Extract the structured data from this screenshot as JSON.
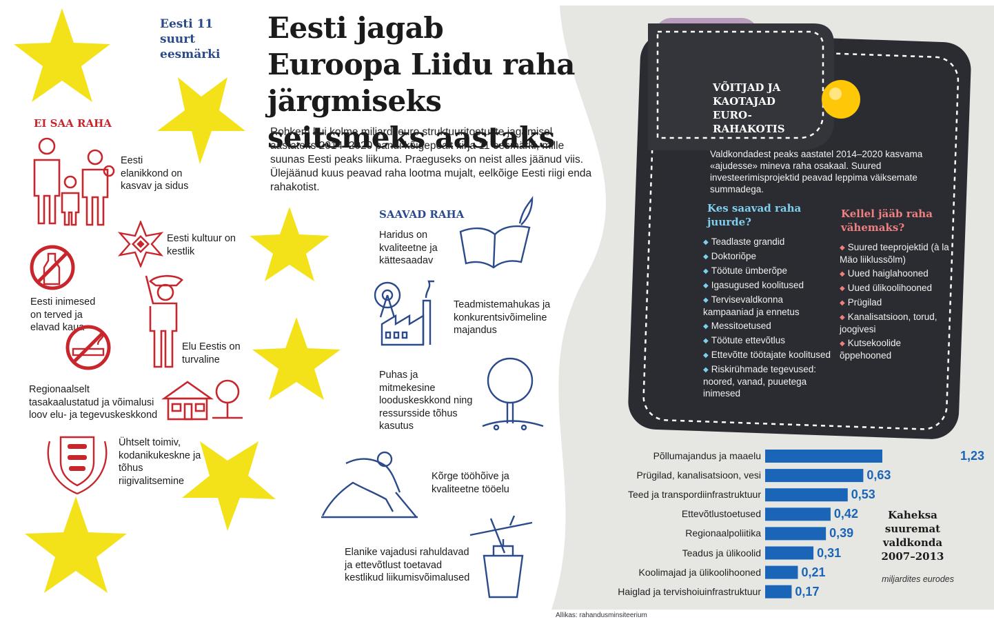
{
  "header": {
    "goals_label": "Eesti 11 suurt eesmärki",
    "title": "Eesti jagab Euroopa Liidu raha järgmiseks seitsmeks aastaks",
    "intro": "Rohkem kui kolme miljardi euro struktuuritoetuste jagamisel aastateks 2014–2020 pandi kõigepealt kirja 11 eesmärki, mille suunas Eesti peaks liikuma. Praeguseks on neist alles jäänud viis. Ülejäänud kuus peavad raha lootma mujalt, eelkõige Eesti riigi enda rahakotist."
  },
  "no_money": {
    "heading": "EI SAA RAHA",
    "items": [
      "Eesti elanikkond on kasvav ja sidus",
      "Eesti kultuur on kestlik",
      "Eesti inimesed on terved ja elavad kaua",
      "Elu Eestis on turvaline",
      "Regionaalselt tasakaalustatud ja võimalusi loov elu- ja tegevuskeskkond",
      "Ühtselt toimiv, kodanikukeskne ja tõhus riigivalitsemine"
    ]
  },
  "get_money": {
    "heading": "SAAVAD RAHA",
    "items": [
      "Haridus on kvaliteetne ja kättesaadav",
      "Teadmistemahukas ja konkurentsivõimeline majandus",
      "Puhas ja mitmekesine looduskeskkond ning ressursside tõhus kasutus",
      "Kõrge tööhõive ja kvaliteetne tööelu",
      "Elanike vajadusi rahuldavad ja ettevõtlust toetavad kestlikud liikumisvõimalused"
    ]
  },
  "wallet": {
    "title": "VÕITJAD JA KAOTAJAD EURO-RAHAKOTIS",
    "text": "Valdkondadest peaks aastatel 2014–2020 kasvama «ajudesse» mineva raha osakaal. Suured investeerimisprojektid peavad leppima väiksemate summadega.",
    "winners_heading": "Kes saavad raha juurde?",
    "losers_heading": "Kellel jääb raha vähemaks?",
    "winners": [
      "Teadlaste grandid",
      "Doktoriõpe",
      "Töötute ümberõpe",
      "Igasugused koolitused",
      "Tervisevaldkonna kampaaniad ja ennetus",
      "Messitoetused",
      "Töötute ettevõtlus",
      "Ettevõtte töötajate koolitused",
      "Riskirühmade tegevused: noored, vanad, puuetega inimesed"
    ],
    "losers": [
      "Suured teeprojektid (à la Mäo liiklussõlm)",
      "Uued haiglahooned",
      "Uued ülikoolihooned",
      "Prügilad",
      "Kanalisatsioon, torud, joogivesi",
      "Kutsekoolide õppehooned"
    ]
  },
  "chart_data": {
    "type": "bar",
    "orientation": "horizontal",
    "title": "Kaheksa suuremat valdkonda 2007–2013",
    "unit": "miljardites eurodes",
    "categories": [
      "Põllumajandus ja maaelu",
      "Prügilad, kanalisatsioon, vesi",
      "Teed ja transpordiinfrastruktuur",
      "Ettevõtlustoetused",
      "Regionaalpoliitika",
      "Teadus ja ülikoolid",
      "Koolimajad ja ülikoolihooned",
      "Haiglad ja tervishoiuinfrastruktuur"
    ],
    "values": [
      1.23,
      0.63,
      0.53,
      0.42,
      0.39,
      0.31,
      0.21,
      0.17
    ],
    "value_labels": [
      "1,23",
      "0,63",
      "0,53",
      "0,42",
      "0,39",
      "0,31",
      "0,21",
      "0,17"
    ],
    "bar_color": "#1a65b7"
  },
  "source": "Allikas: rahandusminsiteerium",
  "colors": {
    "star": "#f3e21a",
    "red": "#c8262c",
    "navy": "#2a4a8c",
    "wallet": "#2b2c31",
    "bar": "#1a65b7",
    "bubble": "#fec708"
  }
}
